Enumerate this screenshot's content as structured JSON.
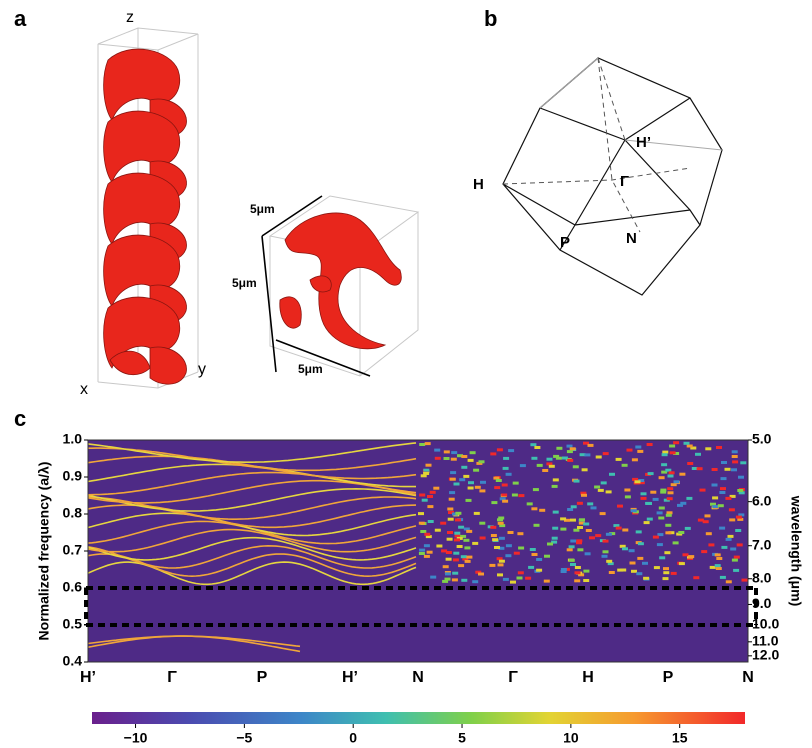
{
  "panel_labels": [
    "a",
    "b",
    "c"
  ],
  "structure": {
    "axis_labels": [
      "z",
      "x",
      "y"
    ],
    "dimension_labels": [
      "5μm",
      "5μm",
      "5μm"
    ]
  },
  "brillouin_zone": {
    "points": [
      "H",
      "H’",
      "Γ",
      "P",
      "N"
    ]
  },
  "chart_data": {
    "type": "heatmap",
    "y_label": "Normalized frequency (a/λ)",
    "y2_label": "wavelength (μm)",
    "categories": [
      "H’",
      "Γ",
      "P",
      "H’",
      "N",
      "Γ",
      "H",
      "P",
      "N"
    ],
    "ylim": [
      0.4,
      1.0
    ],
    "yticks": [
      {
        "value": 1.0,
        "label": "1.0"
      },
      0.9,
      0.8,
      0.7,
      0.6,
      0.5,
      0.4
    ],
    "y2scale": "reciprocal",
    "y2lim": [
      5,
      12.5
    ],
    "y2ticks": [
      {
        "value": 5,
        "label": "5.0"
      },
      {
        "value": 6,
        "label": "6.0"
      },
      {
        "value": 7,
        "label": "7.0"
      },
      {
        "value": 8,
        "label": "8.0"
      },
      {
        "value": 9,
        "label": "9.0"
      },
      {
        "value": 10,
        "label": "10.0"
      },
      {
        "value": 11,
        "label": "11.0"
      },
      {
        "value": 12,
        "label": "12.0"
      }
    ],
    "band_gap": [
      0.5,
      0.6
    ],
    "colorbar": {
      "clim": [
        -12,
        18
      ],
      "ticks": [
        {
          "value": -10,
          "label": "−10"
        },
        {
          "value": -5,
          "label": "−5"
        },
        0,
        5,
        10,
        15
      ]
    }
  }
}
